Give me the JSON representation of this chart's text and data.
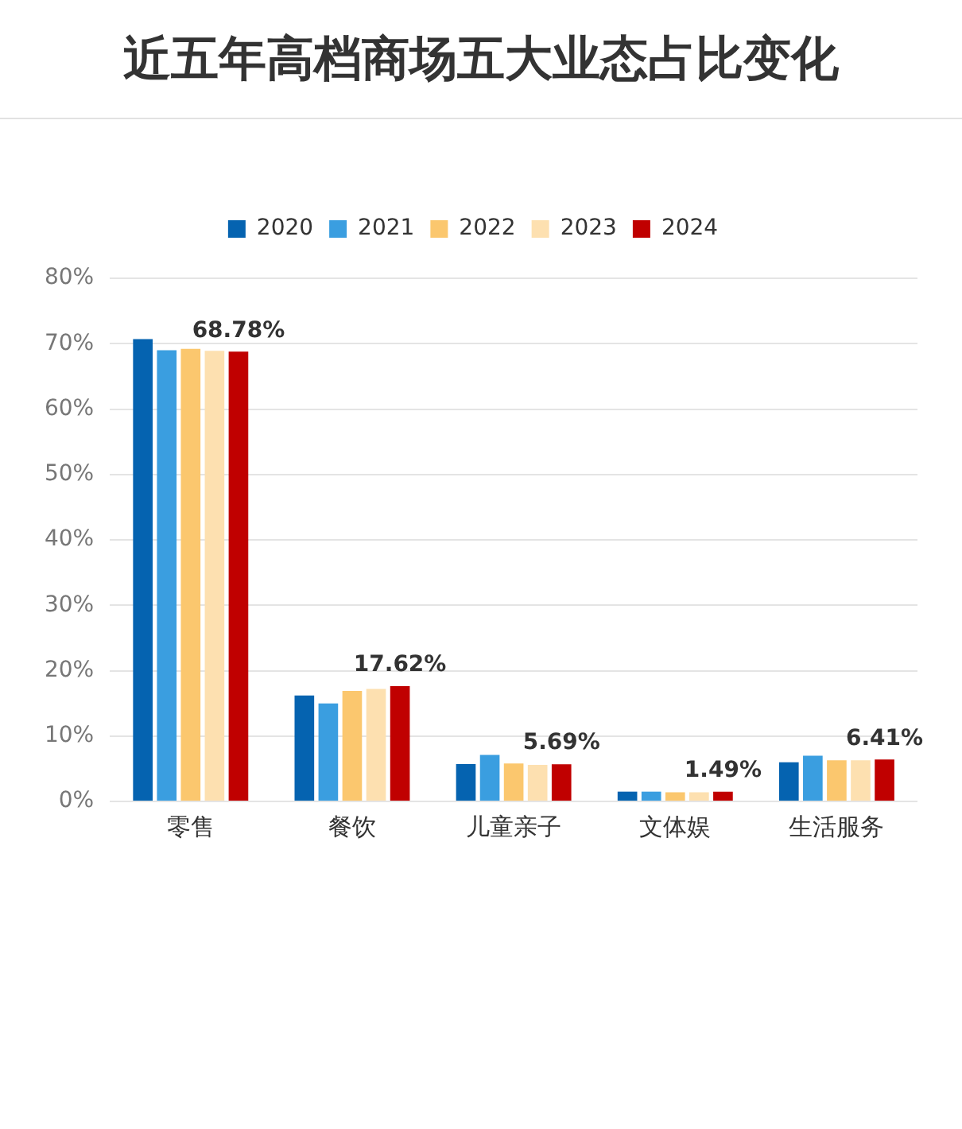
{
  "chart_data": {
    "type": "bar",
    "title": "近五年高档商场五大业态占比变化",
    "categories": [
      "零售",
      "餐饮",
      "儿童亲子",
      "文体娱",
      "生活服务"
    ],
    "series": [
      {
        "name": "2020",
        "color": "#0563b0",
        "values": [
          70.7,
          16.2,
          5.7,
          1.5,
          6.0
        ]
      },
      {
        "name": "2021",
        "color": "#3a9ee0",
        "values": [
          69.0,
          15.0,
          7.1,
          1.5,
          7.0
        ]
      },
      {
        "name": "2022",
        "color": "#fbc76e",
        "values": [
          69.2,
          16.9,
          5.8,
          1.4,
          6.3
        ]
      },
      {
        "name": "2023",
        "color": "#fde0b0",
        "values": [
          68.9,
          17.2,
          5.6,
          1.4,
          6.3
        ]
      },
      {
        "name": "2024",
        "color": "#c00000",
        "values": [
          68.78,
          17.62,
          5.69,
          1.49,
          6.41
        ],
        "value_labels": [
          "68.78%",
          "17.62%",
          "5.69%",
          "1.49%",
          "6.41%"
        ]
      }
    ],
    "ylim": [
      0,
      80
    ],
    "yticks": [
      {
        "value": 0,
        "label": "0%"
      },
      {
        "value": 10,
        "label": "10%"
      },
      {
        "value": 20,
        "label": "20%"
      },
      {
        "value": 30,
        "label": "30%"
      },
      {
        "value": 40,
        "label": "40%"
      },
      {
        "value": 50,
        "label": "50%"
      },
      {
        "value": 60,
        "label": "60%"
      },
      {
        "value": 70,
        "label": "70%"
      },
      {
        "value": 80,
        "label": "80%"
      }
    ],
    "grid": "y",
    "legend": "top"
  }
}
